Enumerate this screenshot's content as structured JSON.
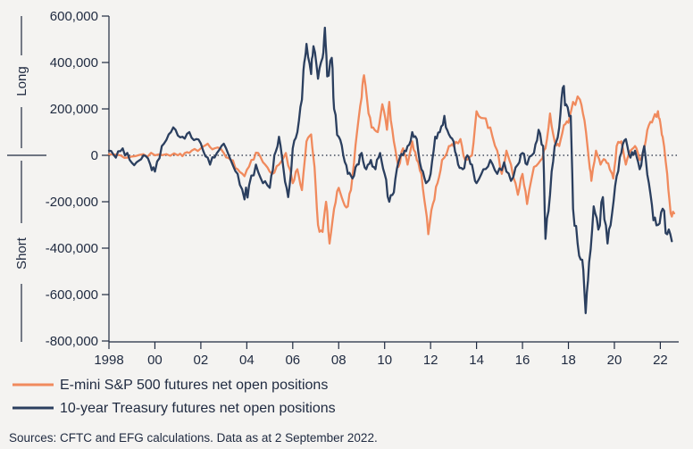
{
  "chart_data": {
    "type": "line",
    "title": "",
    "xlabel": "",
    "ylabel": "",
    "side_labels": {
      "top": "Long",
      "bottom": "Short"
    },
    "ylim": [
      -800000,
      600000
    ],
    "xlim": [
      1998,
      2022.8
    ],
    "y_ticks": [
      600000,
      400000,
      200000,
      0,
      -200000,
      -400000,
      -600000,
      -800000
    ],
    "y_tick_labels": [
      "600,000",
      "400,000",
      "200,000",
      "0",
      "-200,000",
      "-400,000",
      "-600,000",
      "-800,000"
    ],
    "x_ticks": [
      1998,
      2000,
      2002,
      2004,
      2006,
      2008,
      2010,
      2012,
      2014,
      2016,
      2018,
      2020,
      2022
    ],
    "x_tick_labels": [
      "1998",
      "00",
      "02",
      "04",
      "06",
      "08",
      "10",
      "12",
      "14",
      "16",
      "18",
      "20",
      "22"
    ],
    "series": [
      {
        "name": "E-mini S&P 500 futures net open positions",
        "color": "#f08a5d",
        "points": [
          [
            1998.0,
            5000
          ],
          [
            1998.5,
            0
          ],
          [
            1999.0,
            -5000
          ],
          [
            1999.5,
            5000
          ],
          [
            2000.0,
            0
          ],
          [
            2000.5,
            5000
          ],
          [
            2001.0,
            0
          ],
          [
            2001.3,
            10000
          ],
          [
            2001.6,
            20000
          ],
          [
            2002.0,
            30000
          ],
          [
            2002.3,
            50000
          ],
          [
            2002.6,
            30000
          ],
          [
            2003.0,
            10000
          ],
          [
            2003.3,
            -20000
          ],
          [
            2003.6,
            -60000
          ],
          [
            2003.9,
            -90000
          ],
          [
            2004.2,
            -20000
          ],
          [
            2004.5,
            10000
          ],
          [
            2004.8,
            -40000
          ],
          [
            2005.1,
            -80000
          ],
          [
            2005.4,
            -40000
          ],
          [
            2005.7,
            10000
          ],
          [
            2006.0,
            -120000
          ],
          [
            2006.2,
            -60000
          ],
          [
            2006.4,
            -150000
          ],
          [
            2006.6,
            60000
          ],
          [
            2006.8,
            90000
          ],
          [
            2006.95,
            -50000
          ],
          [
            2007.1,
            -300000
          ],
          [
            2007.3,
            -330000
          ],
          [
            2007.45,
            -200000
          ],
          [
            2007.6,
            -380000
          ],
          [
            2007.8,
            -230000
          ],
          [
            2008.0,
            -140000
          ],
          [
            2008.2,
            -200000
          ],
          [
            2008.4,
            -220000
          ],
          [
            2008.6,
            -90000
          ],
          [
            2008.8,
            100000
          ],
          [
            2009.0,
            250000
          ],
          [
            2009.1,
            345000
          ],
          [
            2009.3,
            180000
          ],
          [
            2009.5,
            120000
          ],
          [
            2009.7,
            100000
          ],
          [
            2009.9,
            220000
          ],
          [
            2010.1,
            110000
          ],
          [
            2010.2,
            230000
          ],
          [
            2010.4,
            60000
          ],
          [
            2010.6,
            -50000
          ],
          [
            2010.8,
            30000
          ],
          [
            2011.0,
            -40000
          ],
          [
            2011.2,
            60000
          ],
          [
            2011.4,
            -20000
          ],
          [
            2011.6,
            -80000
          ],
          [
            2011.8,
            -240000
          ],
          [
            2011.9,
            -340000
          ],
          [
            2012.1,
            -210000
          ],
          [
            2012.3,
            -120000
          ],
          [
            2012.5,
            -20000
          ],
          [
            2012.8,
            40000
          ],
          [
            2013.0,
            40000
          ],
          [
            2013.3,
            70000
          ],
          [
            2013.5,
            -20000
          ],
          [
            2013.8,
            0
          ],
          [
            2014.0,
            190000
          ],
          [
            2014.3,
            160000
          ],
          [
            2014.6,
            120000
          ],
          [
            2014.9,
            20000
          ],
          [
            2015.1,
            -80000
          ],
          [
            2015.3,
            20000
          ],
          [
            2015.5,
            -40000
          ],
          [
            2015.8,
            -170000
          ],
          [
            2016.0,
            -80000
          ],
          [
            2016.2,
            -210000
          ],
          [
            2016.5,
            -50000
          ],
          [
            2016.8,
            -20000
          ],
          [
            2017.0,
            30000
          ],
          [
            2017.2,
            180000
          ],
          [
            2017.4,
            60000
          ],
          [
            2017.6,
            40000
          ],
          [
            2017.8,
            130000
          ],
          [
            2018.0,
            140000
          ],
          [
            2018.2,
            230000
          ],
          [
            2018.5,
            240000
          ],
          [
            2018.7,
            150000
          ],
          [
            2018.9,
            -30000
          ],
          [
            2019.0,
            -110000
          ],
          [
            2019.2,
            20000
          ],
          [
            2019.4,
            -40000
          ],
          [
            2019.6,
            -20000
          ],
          [
            2019.8,
            -60000
          ],
          [
            2019.95,
            -100000
          ],
          [
            2020.1,
            40000
          ],
          [
            2020.3,
            60000
          ],
          [
            2020.5,
            -40000
          ],
          [
            2020.7,
            20000
          ],
          [
            2020.9,
            40000
          ],
          [
            2021.1,
            -20000
          ],
          [
            2021.3,
            30000
          ],
          [
            2021.5,
            130000
          ],
          [
            2021.7,
            160000
          ],
          [
            2021.9,
            190000
          ],
          [
            2022.0,
            140000
          ],
          [
            2022.1,
            80000
          ],
          [
            2022.3,
            -80000
          ],
          [
            2022.45,
            -250000
          ],
          [
            2022.6,
            -250000
          ]
        ]
      },
      {
        "name": "10-year Treasury futures net open positions",
        "color": "#2b3f5f",
        "points": [
          [
            1998.0,
            20000
          ],
          [
            1998.3,
            -10000
          ],
          [
            1998.6,
            30000
          ],
          [
            1998.9,
            -20000
          ],
          [
            1999.2,
            -30000
          ],
          [
            1999.5,
            0
          ],
          [
            1999.8,
            -40000
          ],
          [
            2000.0,
            -70000
          ],
          [
            2000.3,
            40000
          ],
          [
            2000.6,
            90000
          ],
          [
            2000.9,
            110000
          ],
          [
            2001.2,
            80000
          ],
          [
            2001.5,
            100000
          ],
          [
            2001.8,
            70000
          ],
          [
            2002.1,
            20000
          ],
          [
            2002.4,
            -40000
          ],
          [
            2002.7,
            10000
          ],
          [
            2003.0,
            50000
          ],
          [
            2003.3,
            -20000
          ],
          [
            2003.6,
            -80000
          ],
          [
            2003.9,
            -190000
          ],
          [
            2004.1,
            -130000
          ],
          [
            2004.4,
            -40000
          ],
          [
            2004.7,
            -120000
          ],
          [
            2005.0,
            -140000
          ],
          [
            2005.2,
            0
          ],
          [
            2005.4,
            80000
          ],
          [
            2005.6,
            -60000
          ],
          [
            2005.8,
            -180000
          ],
          [
            2006.0,
            30000
          ],
          [
            2006.2,
            100000
          ],
          [
            2006.4,
            240000
          ],
          [
            2006.5,
            400000
          ],
          [
            2006.6,
            480000
          ],
          [
            2006.8,
            350000
          ],
          [
            2006.9,
            470000
          ],
          [
            2007.1,
            330000
          ],
          [
            2007.3,
            420000
          ],
          [
            2007.4,
            550000
          ],
          [
            2007.5,
            340000
          ],
          [
            2007.7,
            420000
          ],
          [
            2007.8,
            200000
          ],
          [
            2008.0,
            80000
          ],
          [
            2008.2,
            0
          ],
          [
            2008.4,
            -80000
          ],
          [
            2008.6,
            -100000
          ],
          [
            2008.8,
            -40000
          ],
          [
            2009.0,
            10000
          ],
          [
            2009.2,
            -60000
          ],
          [
            2009.4,
            -20000
          ],
          [
            2009.6,
            -60000
          ],
          [
            2009.8,
            10000
          ],
          [
            2010.0,
            -80000
          ],
          [
            2010.2,
            -200000
          ],
          [
            2010.4,
            -160000
          ],
          [
            2010.6,
            -30000
          ],
          [
            2010.8,
            0
          ],
          [
            2011.0,
            40000
          ],
          [
            2011.2,
            100000
          ],
          [
            2011.4,
            70000
          ],
          [
            2011.6,
            -60000
          ],
          [
            2011.8,
            -120000
          ],
          [
            2012.0,
            -80000
          ],
          [
            2012.2,
            80000
          ],
          [
            2012.4,
            100000
          ],
          [
            2012.6,
            170000
          ],
          [
            2012.8,
            90000
          ],
          [
            2013.0,
            60000
          ],
          [
            2013.2,
            -40000
          ],
          [
            2013.4,
            -60000
          ],
          [
            2013.6,
            0
          ],
          [
            2013.8,
            -40000
          ],
          [
            2014.0,
            -120000
          ],
          [
            2014.3,
            -60000
          ],
          [
            2014.6,
            -20000
          ],
          [
            2014.9,
            -80000
          ],
          [
            2015.2,
            -30000
          ],
          [
            2015.5,
            -110000
          ],
          [
            2015.8,
            -40000
          ],
          [
            2016.0,
            10000
          ],
          [
            2016.2,
            -40000
          ],
          [
            2016.5,
            10000
          ],
          [
            2016.7,
            110000
          ],
          [
            2016.9,
            40000
          ],
          [
            2017.0,
            -360000
          ],
          [
            2017.2,
            -170000
          ],
          [
            2017.4,
            40000
          ],
          [
            2017.6,
            120000
          ],
          [
            2017.75,
            290000
          ],
          [
            2017.9,
            220000
          ],
          [
            2018.1,
            170000
          ],
          [
            2018.2,
            -230000
          ],
          [
            2018.4,
            -380000
          ],
          [
            2018.6,
            -450000
          ],
          [
            2018.75,
            -680000
          ],
          [
            2018.9,
            -460000
          ],
          [
            2019.1,
            -220000
          ],
          [
            2019.3,
            -320000
          ],
          [
            2019.5,
            -180000
          ],
          [
            2019.7,
            -380000
          ],
          [
            2019.9,
            -250000
          ],
          [
            2020.1,
            -90000
          ],
          [
            2020.3,
            10000
          ],
          [
            2020.5,
            70000
          ],
          [
            2020.7,
            -10000
          ],
          [
            2020.9,
            20000
          ],
          [
            2021.1,
            -60000
          ],
          [
            2021.3,
            40000
          ],
          [
            2021.5,
            -120000
          ],
          [
            2021.7,
            -280000
          ],
          [
            2021.9,
            -300000
          ],
          [
            2022.1,
            -230000
          ],
          [
            2022.3,
            -340000
          ],
          [
            2022.5,
            -370000
          ]
        ]
      }
    ],
    "legend": [
      {
        "label": "E-mini S&P 500 futures net open positions",
        "color": "#f08a5d"
      },
      {
        "label": "10-year Treasury futures net open positions",
        "color": "#2b3f5f"
      }
    ],
    "source": "Sources: CFTC and EFG calculations. Data as at 2 September 2022."
  }
}
